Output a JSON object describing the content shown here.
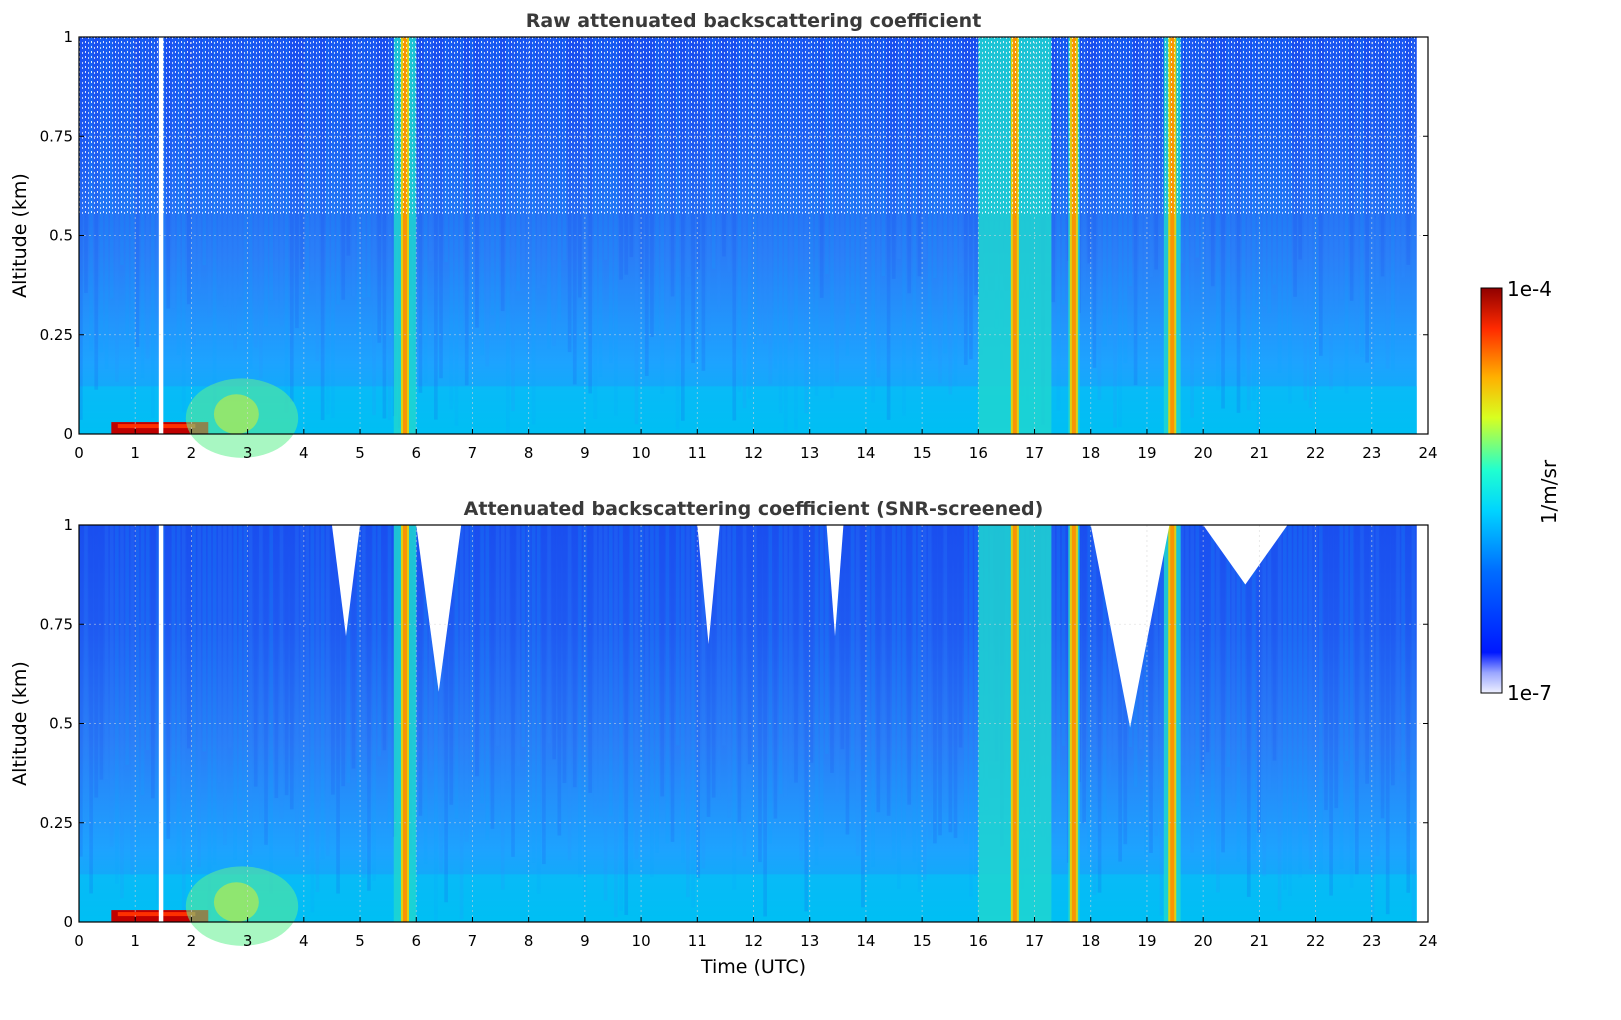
{
  "chart_data": [
    {
      "type": "heatmap",
      "title": "Raw attenuated backscattering coefficient",
      "xlabel": "",
      "ylabel": "Altitude (km)",
      "xlim": [
        0,
        24
      ],
      "ylim": [
        0,
        1
      ],
      "x_ticks": [
        "0",
        "1",
        "2",
        "3",
        "4",
        "5",
        "6",
        "7",
        "8",
        "9",
        "10",
        "11",
        "12",
        "13",
        "14",
        "15",
        "16",
        "17",
        "18",
        "19",
        "20",
        "21",
        "22",
        "23",
        "24"
      ],
      "y_ticks": [
        "0",
        "0.25",
        "0.5",
        "0.75",
        "1"
      ],
      "grid": true,
      "data_time_range_utc": [
        0,
        23.8
      ],
      "missing_data_gap_utc": [
        1.42,
        1.5
      ],
      "features": [
        {
          "kind": "surface_layer",
          "time": [
            0.0,
            2.3
          ],
          "altitude": [
            0,
            0.03
          ],
          "level": "1e-4"
        },
        {
          "kind": "aerosol_plume",
          "time": [
            2.0,
            4.0
          ],
          "altitude": [
            0,
            0.1
          ],
          "level": "intermediate"
        },
        {
          "kind": "precipitation",
          "time": [
            5.6,
            6.0
          ],
          "altitude": [
            0,
            1
          ]
        },
        {
          "kind": "precipitation",
          "time": [
            16.0,
            17.3
          ],
          "altitude": [
            0,
            1
          ]
        },
        {
          "kind": "precipitation",
          "time": [
            17.6,
            17.8
          ],
          "altitude": [
            0,
            1
          ]
        },
        {
          "kind": "precipitation",
          "time": [
            19.3,
            19.6
          ],
          "altitude": [
            0,
            1
          ]
        }
      ]
    },
    {
      "type": "heatmap",
      "title": "Attenuated backscattering coefficient (SNR-screened)",
      "xlabel": "Time (UTC)",
      "ylabel": "Altitude (km)",
      "xlim": [
        0,
        24
      ],
      "ylim": [
        0,
        1
      ],
      "x_ticks": [
        "0",
        "1",
        "2",
        "3",
        "4",
        "5",
        "6",
        "7",
        "8",
        "9",
        "10",
        "11",
        "12",
        "13",
        "14",
        "15",
        "16",
        "17",
        "18",
        "19",
        "20",
        "21",
        "22",
        "23",
        "24"
      ],
      "y_ticks": [
        "0",
        "0.25",
        "0.5",
        "0.75",
        "1"
      ],
      "grid": true,
      "data_time_range_utc": [
        0,
        23.8
      ],
      "missing_data_gap_utc": [
        1.42,
        1.5
      ],
      "masked_low_snr_regions": [
        {
          "time": [
            4.5,
            5.0
          ],
          "altitude_min": 0.72
        },
        {
          "time": [
            6.0,
            6.8
          ],
          "altitude_min": 0.58
        },
        {
          "time": [
            11.0,
            11.4
          ],
          "altitude_min": 0.7
        },
        {
          "time": [
            13.3,
            13.6
          ],
          "altitude_min": 0.72
        },
        {
          "time": [
            18.0,
            19.4
          ],
          "altitude_min": 0.49
        },
        {
          "time": [
            20.0,
            21.5
          ],
          "altitude_min": 0.85
        }
      ]
    }
  ],
  "colorbar": {
    "label": "1/m/sr",
    "max_label": "1e-4",
    "min_label": "1e-7",
    "scale": "log",
    "colormap": "jet"
  }
}
